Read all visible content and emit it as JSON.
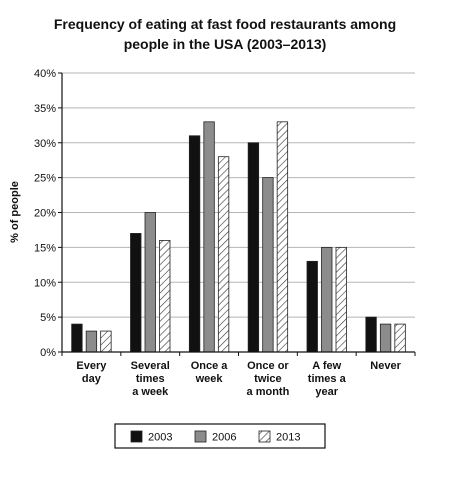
{
  "chart_data": {
    "type": "bar",
    "title_lines": [
      "Frequency of eating at fast food restaurants among",
      "people in the USA (2003–2013)"
    ],
    "ylabel": "% of people",
    "xlabel": "",
    "ylim": [
      0,
      40
    ],
    "yticks": [
      "0%",
      "5%",
      "10%",
      "15%",
      "20%",
      "25%",
      "30%",
      "35%",
      "40%"
    ],
    "ytick_values": [
      0,
      5,
      10,
      15,
      20,
      25,
      30,
      35,
      40
    ],
    "grid": true,
    "legend_position": "bottom",
    "categories": [
      [
        "Every",
        "day"
      ],
      [
        "Several",
        "times",
        "a week"
      ],
      [
        "Once a",
        "week"
      ],
      [
        "Once or",
        "twice",
        "a month"
      ],
      [
        "A few",
        "times a",
        "year"
      ],
      [
        "Never"
      ]
    ],
    "series": [
      {
        "name": "2003",
        "fill": "black",
        "color": "#111111",
        "values": [
          4,
          17,
          31,
          30,
          13,
          5
        ]
      },
      {
        "name": "2006",
        "fill": "gray",
        "color": "#8c8c8c",
        "values": [
          3,
          20,
          33,
          25,
          15,
          4
        ]
      },
      {
        "name": "2013",
        "fill": "hatched",
        "color": "#ffffff",
        "values": [
          3,
          16,
          28,
          33,
          15,
          4
        ]
      }
    ]
  }
}
